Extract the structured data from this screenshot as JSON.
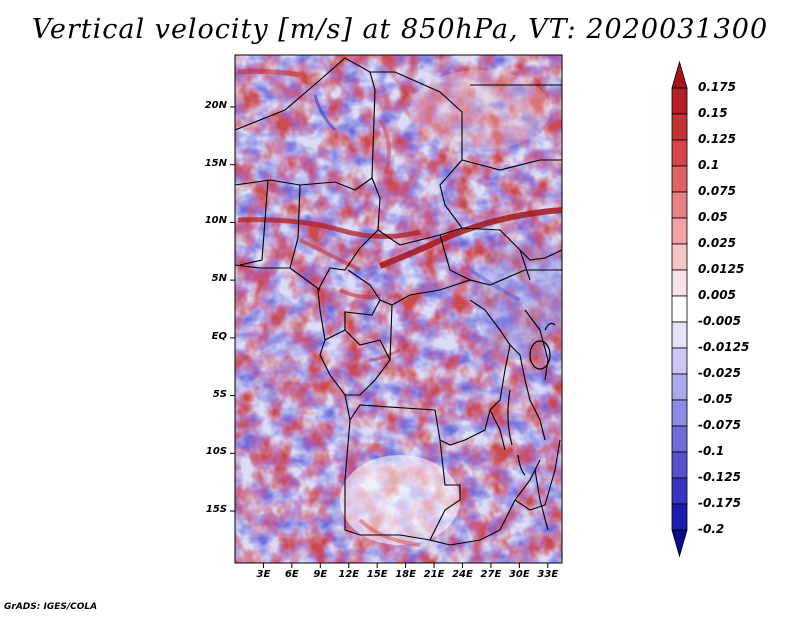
{
  "title": "Vertical velocity [m/s] at 850hPa, VT: 2020031300",
  "credit": "GrADS: IGES/COLA",
  "map": {
    "lat_labels": [
      "20N",
      "15N",
      "10N",
      "5N",
      "EQ",
      "5S",
      "10S",
      "15S"
    ],
    "lat_values": [
      20,
      15,
      10,
      5,
      0,
      -5,
      -10,
      -15
    ],
    "lon_labels": [
      "3E",
      "6E",
      "9E",
      "12E",
      "15E",
      "18E",
      "21E",
      "24E",
      "27E",
      "30E",
      "33E"
    ],
    "lon_values": [
      3,
      6,
      9,
      12,
      15,
      18,
      21,
      24,
      27,
      30,
      33
    ],
    "lon_range": [
      0,
      34.5
    ],
    "lat_range": [
      -19.5,
      24.5
    ]
  },
  "colorbar": {
    "labels": [
      "0.175",
      "0.15",
      "0.125",
      "0.1",
      "0.075",
      "0.05",
      "0.025",
      "0.0125",
      "0.005",
      "-0.005",
      "-0.0125",
      "-0.025",
      "-0.05",
      "-0.075",
      "-0.1",
      "-0.125",
      "-0.175",
      "-0.2"
    ],
    "colors": [
      "#a5161a",
      "#b52026",
      "#c43236",
      "#d4464a",
      "#df6266",
      "#e88084",
      "#f0a2a4",
      "#f6c4c5",
      "#fbe2e2",
      "#ffffff",
      "#e3e3fb",
      "#c8c8f6",
      "#a9a9ef",
      "#8c8ce6",
      "#6e6edb",
      "#5252cf",
      "#3636c2",
      "#1c1cae",
      "#0a0a8f"
    ]
  }
}
